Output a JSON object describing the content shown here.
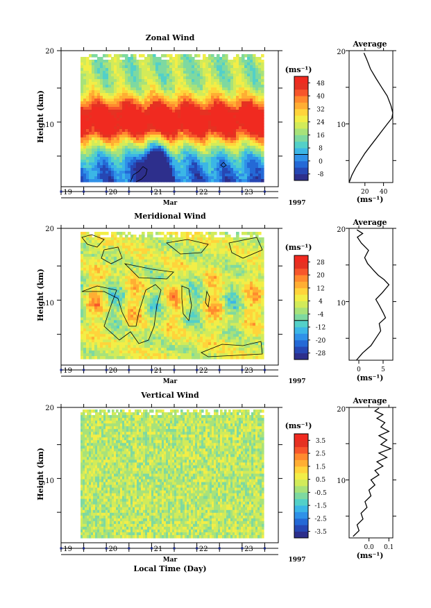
{
  "colors": {
    "colormap": [
      "#2d2f8c",
      "#2647b4",
      "#2469d6",
      "#2f91e8",
      "#3bb6e6",
      "#53d0c8",
      "#7ed9a0",
      "#a8e27a",
      "#d2eb5a",
      "#f2ee47",
      "#ffd43b",
      "#ffae33",
      "#ff8a2e",
      "#f7562b",
      "#e53222",
      "#f02a20"
    ],
    "contour": "#000000",
    "day_marker": "#1c2a8a",
    "profile_line": "#000000"
  },
  "time_axis": {
    "day_labels": [
      "19",
      "20",
      "21",
      "22",
      "23"
    ],
    "month_label": "Mar",
    "year_label": "1997",
    "xlabel": "Local Time (Day)"
  },
  "chart_data": [
    {
      "type": "heatmap",
      "title": "Zonal Wind",
      "ylabel": "Height (km)",
      "yticks": [
        "20",
        "10"
      ],
      "ylim": [
        2,
        20
      ],
      "xlim": [
        18.5,
        23.3
      ],
      "units": "(ms⁻¹)",
      "colorbar_ticks": [
        "48",
        "40",
        "32",
        "24",
        "16",
        "8",
        "0",
        "-8"
      ],
      "colorbar_range": [
        -12,
        52
      ],
      "contour_level": 0,
      "peak_height_km": 10.5,
      "peak_value": 48,
      "low_region_note": "minimum near 0 below 5 km around day 20.5"
    },
    {
      "type": "line",
      "title": "Average",
      "xticks": [
        "20",
        "40"
      ],
      "xlim": [
        3,
        50
      ],
      "yticks": [
        "20",
        "10"
      ],
      "ylim": [
        2,
        20
      ],
      "xlabel": "(ms⁻¹)",
      "x": [
        3,
        6,
        10,
        15,
        20,
        26,
        32,
        38,
        44,
        49,
        50,
        48,
        44,
        38,
        32,
        26,
        22,
        19
      ],
      "y": [
        2,
        3,
        4,
        5,
        6,
        7,
        8,
        9,
        10,
        10.8,
        11.5,
        12.5,
        13.8,
        15,
        16.2,
        17.5,
        18.8,
        19.7
      ]
    },
    {
      "type": "heatmap",
      "title": "Meridional Wind",
      "ylabel": "Height (km)",
      "yticks": [
        "20",
        "10"
      ],
      "ylim": [
        2,
        20
      ],
      "xlim": [
        18.5,
        23.3
      ],
      "units": "(ms⁻¹)",
      "colorbar_ticks": [
        "28",
        "20",
        "12",
        "4",
        "-4",
        "-12",
        "-20",
        "-28"
      ],
      "colorbar_range": [
        -32,
        32
      ],
      "contour_level": 0
    },
    {
      "type": "line",
      "title": "Average",
      "xticks": [
        "0",
        "5"
      ],
      "xlim": [
        -2,
        7
      ],
      "yticks": [
        "20",
        "10"
      ],
      "ylim": [
        2,
        20
      ],
      "xlabel": "(ms⁻¹)",
      "x": [
        -0.5,
        0.8,
        2.5,
        3.5,
        4.5,
        4.2,
        5.5,
        5.0,
        4.2,
        3.5,
        4.8,
        6.2,
        5.2,
        4.0,
        3.0,
        1.8,
        1.2,
        2.0,
        0.5,
        -0.3,
        0.8,
        -0.4
      ],
      "y": [
        2,
        3,
        4,
        5,
        6,
        7,
        7.8,
        8.5,
        9.5,
        10.3,
        11.2,
        12.3,
        13.0,
        13.6,
        14.3,
        15.2,
        16.0,
        17.0,
        18.0,
        18.8,
        19.3,
        19.8
      ]
    },
    {
      "type": "heatmap",
      "title": "Vertical Wind",
      "ylabel": "Height (km)",
      "yticks": [
        "20",
        "10"
      ],
      "ylim": [
        2,
        20
      ],
      "xlim": [
        18.5,
        23.3
      ],
      "units": "(ms⁻¹)",
      "colorbar_ticks": [
        "3.5",
        "2.5",
        "1.5",
        "0.5",
        "-0.5",
        "-1.5",
        "-2.5",
        "-3.5"
      ],
      "colorbar_range": [
        -4,
        4
      ]
    },
    {
      "type": "line",
      "title": "Average",
      "xticks": [
        "0.0",
        "0.1"
      ],
      "xlim": [
        -0.1,
        0.12
      ],
      "yticks": [
        "20",
        "10"
      ],
      "ylim": [
        2,
        20
      ],
      "xlabel": "(ms⁻¹)",
      "x": [
        -0.08,
        -0.05,
        -0.06,
        -0.03,
        -0.04,
        -0.01,
        -0.02,
        0.01,
        0.0,
        0.03,
        0.01,
        0.05,
        0.03,
        0.07,
        0.04,
        0.09,
        0.05,
        0.11,
        0.06,
        0.09,
        0.05,
        0.1,
        0.06,
        0.08,
        0.04,
        0.07,
        0.03,
        0.05
      ],
      "y": [
        2.2,
        3,
        3.8,
        4.6,
        5.4,
        6.2,
        7.0,
        7.8,
        8.6,
        9.3,
        10.0,
        10.7,
        11.3,
        11.9,
        12.5,
        13.1,
        13.7,
        14.3,
        14.9,
        15.5,
        16.1,
        16.7,
        17.3,
        17.9,
        18.5,
        19.0,
        19.5,
        19.9
      ]
    }
  ]
}
